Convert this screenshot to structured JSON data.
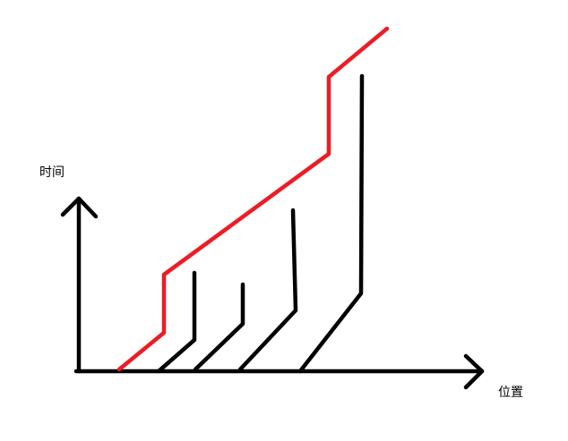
{
  "labels": {
    "y_axis": "时间",
    "x_axis": "位置"
  },
  "colors": {
    "axis": "#000000",
    "highlight_line": "#ed1c24",
    "lines": "#000000"
  }
}
